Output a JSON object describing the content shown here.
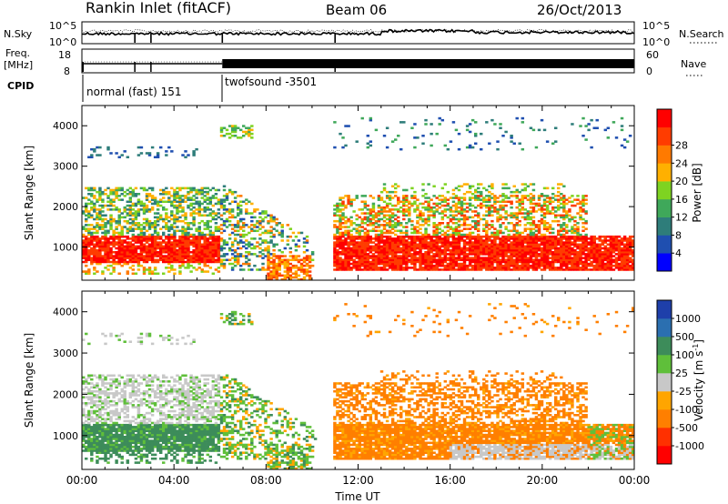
{
  "header": {
    "station": "Rankin Inlet (fitACF)",
    "beam": "Beam 06",
    "date": "26/Oct/2013"
  },
  "top_strip": {
    "nsky_label": "N.Sky",
    "nsky_ticks": [
      "10^5",
      "10^0"
    ],
    "nsearch_label": "N.Search",
    "nsearch_ticks": [
      "10^5",
      "10^0"
    ],
    "freq_label": "Freq.",
    "freq_unit": "[MHz]",
    "freq_ticks": [
      "18",
      "8"
    ],
    "nave_label": "Nave",
    "nave_ticks": [
      "60",
      "0"
    ],
    "cpid_label": "CPID",
    "cpid_modes": [
      {
        "name": "normal (fast) 151",
        "start_hour": 0,
        "end_hour": 6.1
      },
      {
        "name": "twofsound -3501",
        "start_hour": 6.1,
        "end_hour": 24
      }
    ]
  },
  "chart_data": [
    {
      "type": "heatmap",
      "panel": "power",
      "xlabel": "",
      "ylabel": "Slant Range [km]",
      "xlim": [
        0,
        24
      ],
      "ylim": [
        180,
        4500
      ],
      "yticks": [
        "1000",
        "2000",
        "3000",
        "4000"
      ],
      "colorbar": {
        "label": "Power [dB]",
        "ticks": [
          "4",
          "8",
          "12",
          "16",
          "20",
          "24",
          "28"
        ],
        "colors": [
          "#0000ff",
          "#1f4fb0",
          "#2e7d7a",
          "#3fa85a",
          "#7ed321",
          "#ffb000",
          "#ff7a00",
          "#ff3c00",
          "#ff0000"
        ]
      },
      "echo_regions": [
        {
          "hours": [
            0,
            6
          ],
          "range_km": [
            600,
            1300
          ],
          "level": "high"
        },
        {
          "hours": [
            0,
            6
          ],
          "range_km": [
            1300,
            2500
          ],
          "level": "medium"
        },
        {
          "hours": [
            0,
            5
          ],
          "range_km": [
            3200,
            3500
          ],
          "level": "low"
        },
        {
          "hours": [
            6,
            10
          ],
          "range_km": [
            400,
            2600
          ],
          "level": "mixed"
        },
        {
          "hours": [
            11,
            24
          ],
          "range_km": [
            400,
            1300
          ],
          "level": "high"
        },
        {
          "hours": [
            11,
            22
          ],
          "range_km": [
            1300,
            2300
          ],
          "level": "medium"
        }
      ]
    },
    {
      "type": "heatmap",
      "panel": "velocity",
      "xlabel": "Time UT",
      "ylabel": "Slant Range [km]",
      "xlim": [
        0,
        24
      ],
      "ylim": [
        180,
        4500
      ],
      "xticks": [
        "00:00",
        "04:00",
        "08:00",
        "12:00",
        "16:00",
        "20:00",
        "00:00"
      ],
      "yticks": [
        "1000",
        "2000",
        "3000",
        "4000"
      ],
      "colorbar": {
        "label": "Velocity [m s",
        "label_sup": "-1",
        "label_end": "]",
        "ticks": [
          "1000",
          "500",
          "100",
          "25",
          "-25",
          "-100",
          "-500",
          "-1000"
        ],
        "colors": [
          "#1e3faa",
          "#2b6fb0",
          "#3d8c5a",
          "#5fbf3a",
          "#c8c8c8",
          "#ffa500",
          "#ff7f00",
          "#ff3000",
          "#ff0000"
        ]
      },
      "echo_regions": [
        {
          "hours": [
            0,
            6
          ],
          "range_km": [
            700,
            1300
          ],
          "level": "toward slow"
        },
        {
          "hours": [
            0,
            6
          ],
          "range_km": [
            1300,
            2600
          ],
          "level": "ground scatter"
        },
        {
          "hours": [
            11,
            24
          ],
          "range_km": [
            500,
            1600
          ],
          "level": "away"
        },
        {
          "hours": [
            14,
            22
          ],
          "range_km": [
            1600,
            2400
          ],
          "level": "away"
        }
      ]
    }
  ]
}
